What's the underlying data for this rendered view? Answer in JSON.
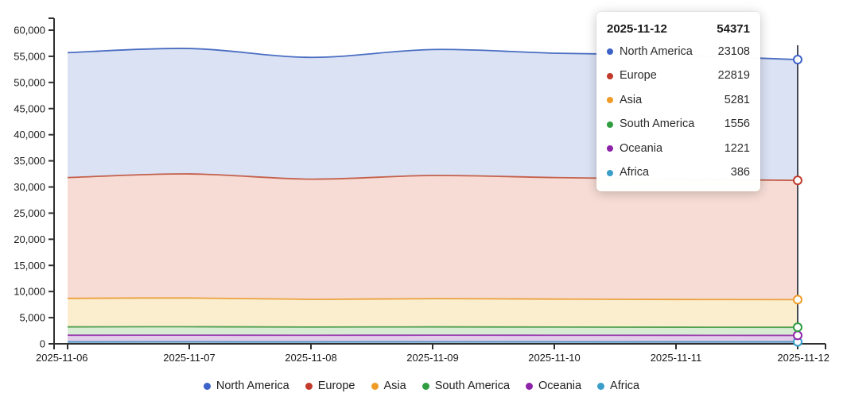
{
  "chart_data": {
    "type": "area",
    "stacked": true,
    "grid": false,
    "legend_position": "bottom",
    "x_labels": [
      "2025-11-06",
      "2025-11-07",
      "2025-11-08",
      "2025-11-09",
      "2025-11-10",
      "2025-11-11",
      "2025-11-12"
    ],
    "ylim": [
      0,
      60000
    ],
    "ytick_step": 5000,
    "hover_x_index": 6,
    "series": [
      {
        "name": "North America",
        "color": "#3d63c8",
        "line": "#4a6ec2",
        "fill": "#dbe2f4",
        "values": [
          23900,
          24000,
          23300,
          24100,
          23800,
          23700,
          23108
        ]
      },
      {
        "name": "Europe",
        "color": "#c13a2a",
        "line": "#c4604c",
        "fill": "#f6dcd4",
        "values": [
          23110,
          23735,
          22990,
          23560,
          23245,
          23020,
          22819
        ]
      },
      {
        "name": "Asia",
        "color": "#f09b28",
        "line": "#eba23f",
        "fill": "#faeecf",
        "values": [
          5450,
          5500,
          5300,
          5400,
          5350,
          5300,
          5281
        ]
      },
      {
        "name": "South America",
        "color": "#2f9e41",
        "line": "#55a253",
        "fill": "#d8ecd4",
        "values": [
          1600,
          1610,
          1580,
          1590,
          1570,
          1560,
          1556
        ]
      },
      {
        "name": "Oceania",
        "color": "#8d23a8",
        "line": "#9b3fae",
        "fill": "#e3cdeb",
        "values": [
          1250,
          1260,
          1240,
          1250,
          1240,
          1230,
          1221
        ]
      },
      {
        "name": "Africa",
        "color": "#3a9ec9",
        "line": "#5b97c2",
        "fill": "#a9c7e2",
        "values": [
          390,
          395,
          390,
          400,
          395,
          390,
          386
        ]
      }
    ],
    "axis_color": "#2f2f2f",
    "crosshair_color": "#454a54",
    "tick_label_color": "#1a1a1a"
  },
  "tooltip": {
    "date": "2025-11-12",
    "total": "54371",
    "rows": [
      {
        "label": "North America",
        "value": "23108",
        "color": "#3d63c8"
      },
      {
        "label": "Europe",
        "value": "22819",
        "color": "#c13a2a"
      },
      {
        "label": "Asia",
        "value": "5281",
        "color": "#f09b28"
      },
      {
        "label": "South America",
        "value": "1556",
        "color": "#2f9e41"
      },
      {
        "label": "Oceania",
        "value": "1221",
        "color": "#8d23a8"
      },
      {
        "label": "Africa",
        "value": "386",
        "color": "#3a9ec9"
      }
    ]
  },
  "legend": {
    "items": [
      {
        "label": "North America",
        "color": "#3d63c8"
      },
      {
        "label": "Europe",
        "color": "#c13a2a"
      },
      {
        "label": "Asia",
        "color": "#f09b28"
      },
      {
        "label": "South America",
        "color": "#2f9e41"
      },
      {
        "label": "Oceania",
        "color": "#8d23a8"
      },
      {
        "label": "Africa",
        "color": "#3a9ec9"
      }
    ]
  }
}
